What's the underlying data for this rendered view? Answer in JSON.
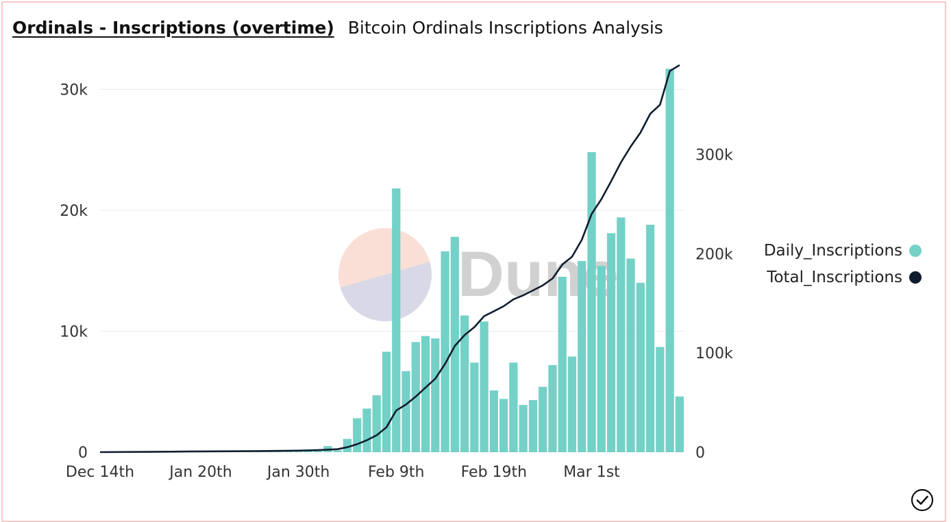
{
  "header": {
    "query_title": "Ordinals - Inscriptions (overtime)",
    "dashboard_title": "Bitcoin Ordinals Inscriptions Analysis"
  },
  "watermark": {
    "text": "Dune"
  },
  "colors": {
    "bar": "#74d1c7",
    "line": "#0f1d2e",
    "grid": "#ececec",
    "text": "#333333"
  },
  "status_icon": "check-circle-icon",
  "chart_data": {
    "type": "bar",
    "series": [
      {
        "name": "Daily_Inscriptions",
        "type": "bar",
        "axis": "left",
        "color": "#74d1c7",
        "points": [
          [
            "2022-12-14",
            0
          ],
          [
            "2023-01-25",
            30
          ],
          [
            "2023-01-26",
            40
          ],
          [
            "2023-01-27",
            60
          ],
          [
            "2023-01-28",
            80
          ],
          [
            "2023-01-29",
            90
          ],
          [
            "2023-01-30",
            100
          ],
          [
            "2023-01-31",
            130
          ],
          [
            "2023-02-01",
            250
          ],
          [
            "2023-02-02",
            500
          ],
          [
            "2023-02-03",
            150
          ],
          [
            "2023-02-04",
            1100
          ],
          [
            "2023-02-05",
            2800
          ],
          [
            "2023-02-06",
            3600
          ],
          [
            "2023-02-07",
            4700
          ],
          [
            "2023-02-08",
            8300
          ],
          [
            "2023-02-09",
            21800
          ],
          [
            "2023-02-10",
            6700
          ],
          [
            "2023-02-11",
            9100
          ],
          [
            "2023-02-12",
            9600
          ],
          [
            "2023-02-13",
            9400
          ],
          [
            "2023-02-14",
            16600
          ],
          [
            "2023-02-15",
            17800
          ],
          [
            "2023-02-16",
            11300
          ],
          [
            "2023-02-17",
            7400
          ],
          [
            "2023-02-18",
            10800
          ],
          [
            "2023-02-19",
            5100
          ],
          [
            "2023-02-20",
            4400
          ],
          [
            "2023-02-21",
            7400
          ],
          [
            "2023-02-22",
            3900
          ],
          [
            "2023-02-23",
            4300
          ],
          [
            "2023-02-24",
            5400
          ],
          [
            "2023-02-25",
            7200
          ],
          [
            "2023-02-26",
            14500
          ],
          [
            "2023-02-27",
            7900
          ],
          [
            "2023-02-28",
            15800
          ],
          [
            "2023-03-01",
            24800
          ],
          [
            "2023-03-02",
            15400
          ],
          [
            "2023-03-03",
            18100
          ],
          [
            "2023-03-04",
            19400
          ],
          [
            "2023-03-05",
            16000
          ],
          [
            "2023-03-06",
            14000
          ],
          [
            "2023-03-07",
            18800
          ],
          [
            "2023-03-08",
            8700
          ],
          [
            "2023-03-09",
            31700
          ],
          [
            "2023-03-10",
            4600
          ]
        ]
      },
      {
        "name": "Total_Inscriptions",
        "type": "line",
        "axis": "right",
        "color": "#0f1d2e",
        "points": [
          [
            "2022-12-14",
            1
          ],
          [
            "2023-01-01",
            300
          ],
          [
            "2023-01-15",
            600
          ],
          [
            "2023-01-25",
            1000
          ],
          [
            "2023-01-30",
            1500
          ],
          [
            "2023-02-01",
            2000
          ],
          [
            "2023-02-02",
            2500
          ],
          [
            "2023-02-03",
            3000
          ],
          [
            "2023-02-04",
            5000
          ],
          [
            "2023-02-05",
            8000
          ],
          [
            "2023-02-06",
            12000
          ],
          [
            "2023-02-07",
            17000
          ],
          [
            "2023-02-08",
            25000
          ],
          [
            "2023-02-09",
            42000
          ],
          [
            "2023-02-10",
            48000
          ],
          [
            "2023-02-11",
            56000
          ],
          [
            "2023-02-12",
            65000
          ],
          [
            "2023-02-13",
            74000
          ],
          [
            "2023-02-14",
            89000
          ],
          [
            "2023-02-15",
            107000
          ],
          [
            "2023-02-16",
            118000
          ],
          [
            "2023-02-17",
            126000
          ],
          [
            "2023-02-18",
            137000
          ],
          [
            "2023-02-19",
            142000
          ],
          [
            "2023-02-20",
            147000
          ],
          [
            "2023-02-21",
            154000
          ],
          [
            "2023-02-22",
            158000
          ],
          [
            "2023-02-23",
            163000
          ],
          [
            "2023-02-24",
            168000
          ],
          [
            "2023-02-25",
            175000
          ],
          [
            "2023-02-26",
            189000
          ],
          [
            "2023-02-27",
            197000
          ],
          [
            "2023-02-28",
            214000
          ],
          [
            "2023-03-01",
            240000
          ],
          [
            "2023-03-02",
            255000
          ],
          [
            "2023-03-03",
            273000
          ],
          [
            "2023-03-04",
            292000
          ],
          [
            "2023-03-05",
            308000
          ],
          [
            "2023-03-06",
            322000
          ],
          [
            "2023-03-07",
            341000
          ],
          [
            "2023-03-08",
            350000
          ],
          [
            "2023-03-09",
            384000
          ],
          [
            "2023-03-10",
            390000
          ]
        ]
      }
    ],
    "x_ticks": [
      {
        "date": "2022-12-14",
        "label": "Dec 14th"
      },
      {
        "date": "2023-01-20",
        "label": "Jan 20th"
      },
      {
        "date": "2023-01-30",
        "label": "Jan 30th"
      },
      {
        "date": "2023-02-09",
        "label": "Feb 9th"
      },
      {
        "date": "2023-02-19",
        "label": "Feb 19th"
      },
      {
        "date": "2023-03-01",
        "label": "Mar 1st"
      }
    ],
    "xlim": [
      "2022-12-14",
      "2023-03-10"
    ],
    "x_axis_break": {
      "from": "2022-12-14",
      "to": "2023-01-20"
    },
    "y_left": {
      "ylim": [
        0,
        32000
      ],
      "ticks": [
        0,
        10000,
        20000,
        30000
      ],
      "tick_labels": [
        "0",
        "10k",
        "20k",
        "30k"
      ]
    },
    "y_right": {
      "ylim": [
        0,
        390000
      ],
      "ticks": [
        0,
        100000,
        200000,
        300000
      ],
      "tick_labels": [
        "0",
        "100k",
        "200k",
        "300k"
      ]
    },
    "grid": true,
    "legend_position": "right"
  }
}
